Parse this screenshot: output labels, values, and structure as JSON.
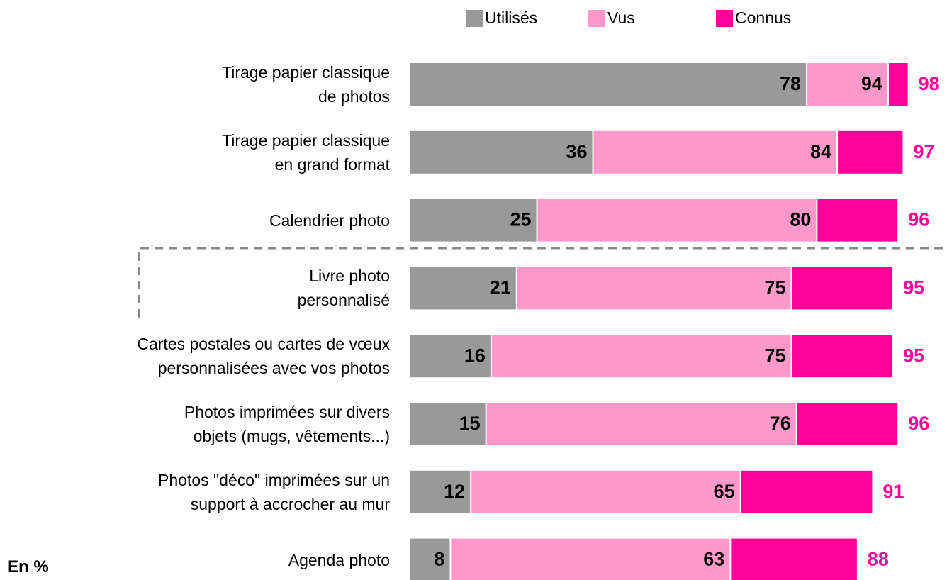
{
  "chart_data": {
    "type": "bar",
    "orientation": "horizontal",
    "categories": [
      "Tirage papier classique\nde photos",
      "Tirage papier classique\nen grand format",
      "Calendrier photo",
      "Livre photo\npersonnalisé",
      "Cartes postales ou cartes de vœux\npersonnalisées avec vos photos",
      "Photos imprimées sur divers\nobjets (mugs, vêtements...)",
      "Photos \"déco\" imprimées sur un\nsupport à accrocher au mur",
      "Agenda photo"
    ],
    "series": [
      {
        "name": "Utilisés",
        "color": "#999999",
        "values": [
          78,
          36,
          25,
          21,
          16,
          15,
          12,
          8
        ]
      },
      {
        "name": "Vus",
        "color": "#ff99cc",
        "values": [
          94,
          84,
          80,
          75,
          75,
          76,
          65,
          63
        ]
      },
      {
        "name": "Connus",
        "color": "#ff0099",
        "values": [
          98,
          97,
          96,
          95,
          95,
          96,
          91,
          88
        ]
      }
    ],
    "xlim": [
      0,
      100
    ],
    "note": "En %"
  }
}
